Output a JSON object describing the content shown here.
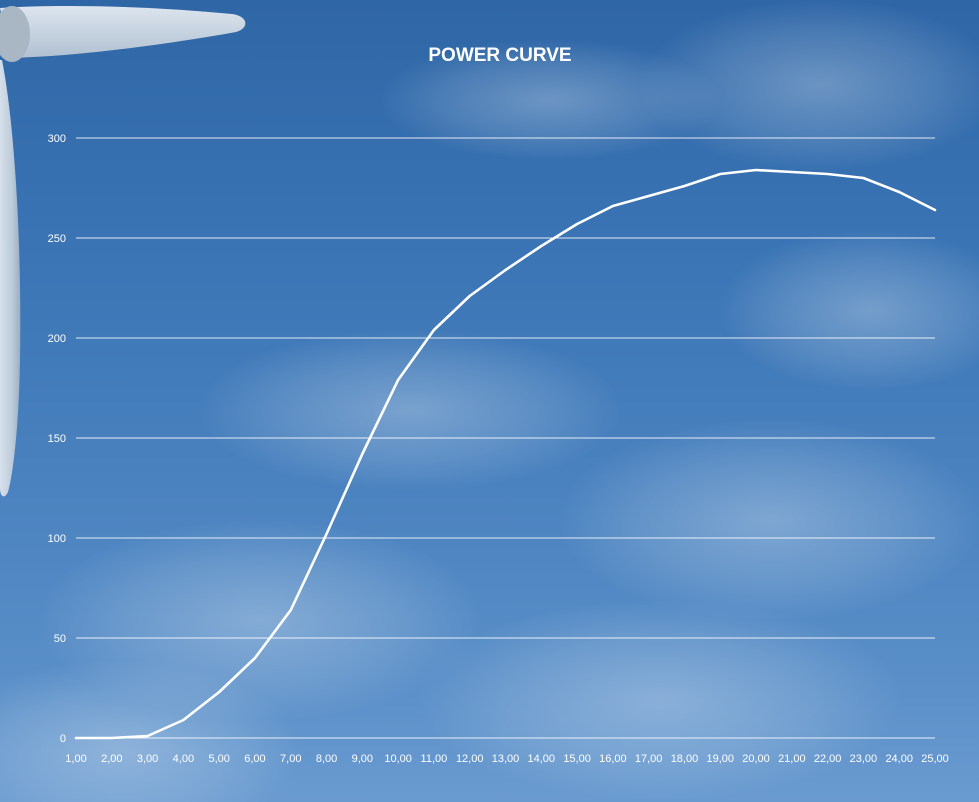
{
  "chart_data": {
    "type": "line",
    "title": "POWER CURVE",
    "xlabel": "",
    "ylabel": "",
    "x": [
      "1,00",
      "2,00",
      "3,00",
      "4,00",
      "5,00",
      "6,00",
      "7,00",
      "8,00",
      "9,00",
      "10,00",
      "11,00",
      "12,00",
      "13,00",
      "14,00",
      "15,00",
      "16,00",
      "17,00",
      "18,00",
      "19,00",
      "20,00",
      "21,00",
      "22,00",
      "23,00",
      "24,00",
      "25,00"
    ],
    "series": [
      {
        "values": [
          0,
          0,
          1,
          9,
          23,
          40,
          64,
          102,
          142,
          179,
          204,
          221,
          234,
          246,
          257,
          266,
          271,
          276,
          282,
          284,
          283,
          282,
          280,
          273,
          264
        ]
      }
    ],
    "ylim": [
      0,
      300
    ],
    "yticks": [
      0,
      50,
      100,
      150,
      200,
      250,
      300
    ],
    "grid": "horizontal",
    "legend": "none",
    "line_color": "#ffffff",
    "background": "sky photo with wind turbine blade"
  }
}
